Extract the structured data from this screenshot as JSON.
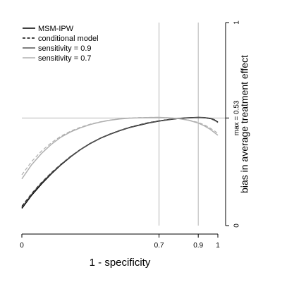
{
  "chart_data": {
    "type": "line",
    "xlabel": "1 - specificity",
    "ylabel": "bias in average treatment effect",
    "xlim": [
      0,
      1
    ],
    "ylim": [
      0,
      1
    ],
    "x_ticks": [
      {
        "value": 0,
        "label": "0"
      },
      {
        "value": 0.7,
        "label": "0.7"
      },
      {
        "value": 0.9,
        "label": "0.9"
      },
      {
        "value": 1,
        "label": "1"
      }
    ],
    "y_ticks": [
      {
        "value": 0,
        "label": "0"
      },
      {
        "value": 1,
        "label": "1"
      }
    ],
    "max_line": {
      "value": 0.53,
      "label": "max = 0.53"
    },
    "vlines": [
      0.7,
      0.9
    ],
    "legend_position": "top-left",
    "series": [
      {
        "name": "MSM-IPW",
        "color": "#000000",
        "dash": "solid",
        "width": 1.6,
        "x": [
          0,
          0.05,
          0.1,
          0.15,
          0.2,
          0.25,
          0.3,
          0.35,
          0.4,
          0.45,
          0.5,
          0.55,
          0.6,
          0.65,
          0.7,
          0.75,
          0.8,
          0.85,
          0.9,
          0.93,
          0.96,
          0.98,
          1.0
        ],
        "y": [
          0.085,
          0.15,
          0.205,
          0.255,
          0.3,
          0.34,
          0.375,
          0.405,
          0.43,
          0.45,
          0.468,
          0.483,
          0.495,
          0.506,
          0.515,
          0.522,
          0.528,
          0.531,
          0.533,
          0.532,
          0.528,
          0.522,
          0.51
        ]
      },
      {
        "name": "conditional model",
        "color": "#000000",
        "dash": "5,3",
        "width": 1.2,
        "x": [
          0,
          0.05,
          0.1,
          0.15,
          0.2,
          0.25,
          0.3,
          0.35,
          0.4,
          0.45,
          0.5,
          0.55,
          0.6,
          0.65,
          0.7,
          0.75,
          0.8,
          0.85,
          0.9,
          0.93,
          0.96,
          0.98,
          1.0
        ],
        "y": [
          0.095,
          0.158,
          0.212,
          0.26,
          0.303,
          0.342,
          0.376,
          0.405,
          0.43,
          0.451,
          0.469,
          0.484,
          0.497,
          0.508,
          0.516,
          0.523,
          0.528,
          0.531,
          0.532,
          0.531,
          0.527,
          0.52,
          0.508
        ]
      },
      {
        "name": "sensitivity = 0.9",
        "color": "#555555",
        "dash": "solid",
        "width": 1.2,
        "x": [
          0,
          0.05,
          0.1,
          0.15,
          0.2,
          0.25,
          0.3,
          0.35,
          0.4,
          0.45,
          0.5,
          0.55,
          0.6,
          0.65,
          0.7,
          0.75,
          0.8,
          0.85,
          0.9,
          0.93,
          0.96,
          0.98,
          1.0
        ],
        "y": [
          0.09,
          0.155,
          0.21,
          0.258,
          0.302,
          0.341,
          0.375,
          0.405,
          0.43,
          0.45,
          0.468,
          0.483,
          0.496,
          0.507,
          0.515,
          0.522,
          0.528,
          0.531,
          0.533,
          0.532,
          0.528,
          0.521,
          0.508
        ]
      },
      {
        "name": "sensitivity = 0.7",
        "color": "#b0b0b0",
        "dash": "solid",
        "width": 1.5,
        "x": [
          0,
          0.05,
          0.1,
          0.15,
          0.2,
          0.25,
          0.3,
          0.35,
          0.4,
          0.45,
          0.5,
          0.55,
          0.6,
          0.65,
          0.7,
          0.75,
          0.8,
          0.85,
          0.9,
          0.93,
          0.96,
          0.98,
          1.0
        ],
        "y": [
          0.23,
          0.3,
          0.355,
          0.4,
          0.436,
          0.462,
          0.482,
          0.498,
          0.51,
          0.519,
          0.525,
          0.529,
          0.531,
          0.532,
          0.533,
          0.531,
          0.527,
          0.519,
          0.505,
          0.492,
          0.475,
          0.46,
          0.445
        ]
      },
      {
        "name": "",
        "color": "#b0b0b0",
        "dash": "5,3",
        "width": 1.2,
        "x": [
          0,
          0.05,
          0.1,
          0.15,
          0.2,
          0.25,
          0.3,
          0.35,
          0.4,
          0.45,
          0.5,
          0.55,
          0.6,
          0.65,
          0.7,
          0.75,
          0.8,
          0.85,
          0.9,
          0.93,
          0.96,
          0.98,
          1.0
        ],
        "y": [
          0.25,
          0.316,
          0.367,
          0.408,
          0.441,
          0.466,
          0.485,
          0.5,
          0.511,
          0.52,
          0.526,
          0.53,
          0.532,
          0.533,
          0.533,
          0.531,
          0.527,
          0.52,
          0.508,
          0.497,
          0.481,
          0.468,
          0.455
        ]
      }
    ],
    "legend": [
      {
        "label": "MSM-IPW",
        "color": "#000000",
        "dash": "solid"
      },
      {
        "label": "conditional model",
        "color": "#000000",
        "dash": "5,3"
      },
      {
        "label": "sensitivity = 0.9",
        "color": "#555555",
        "dash": "solid"
      },
      {
        "label": "sensitivity = 0.7",
        "color": "#b0b0b0",
        "dash": "solid"
      }
    ]
  }
}
